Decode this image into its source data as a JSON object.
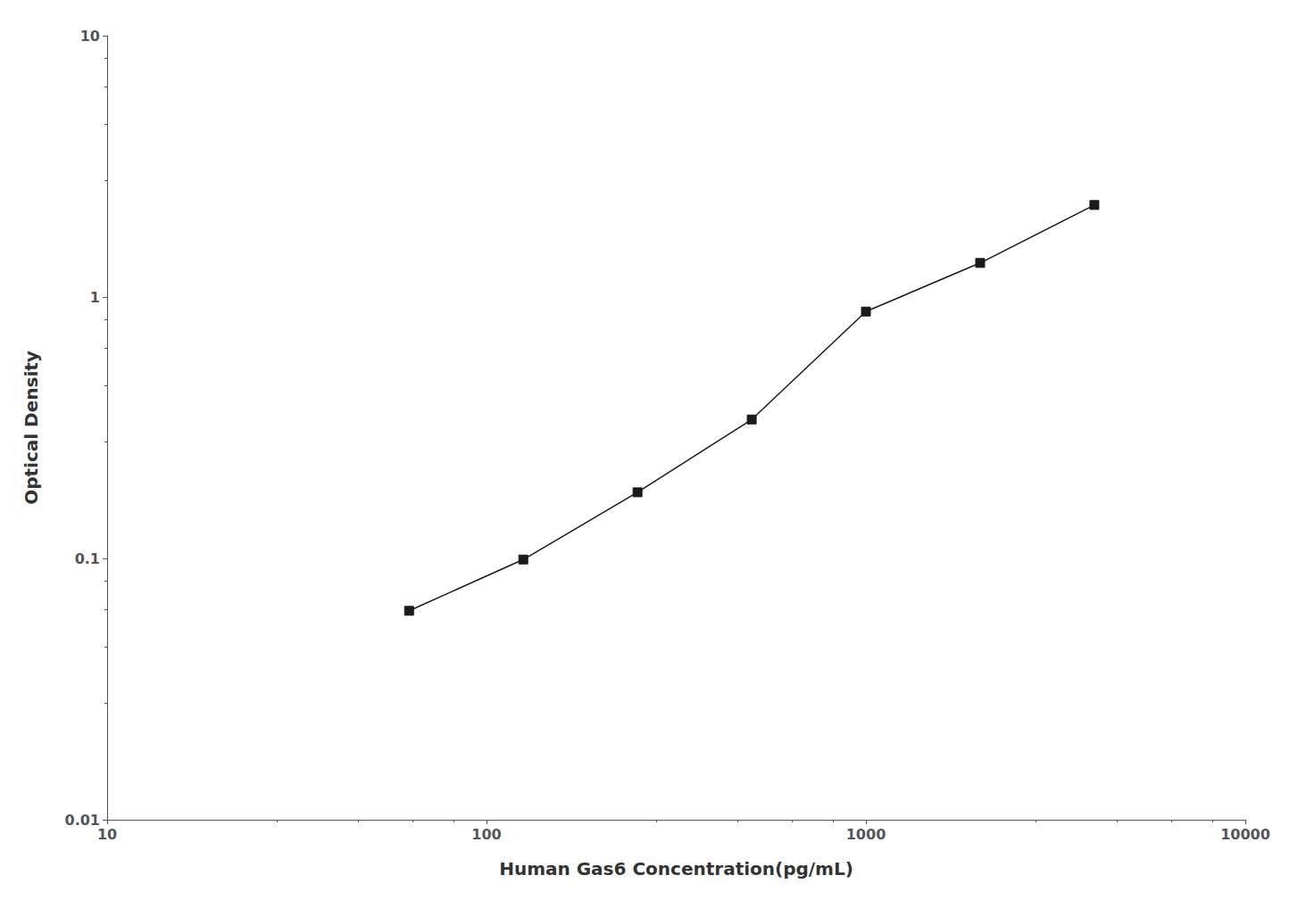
{
  "chart_data": {
    "type": "line",
    "x": [
      62.5,
      125,
      250,
      500,
      1000,
      2000,
      4000
    ],
    "values": [
      0.063,
      0.099,
      0.179,
      0.34,
      0.88,
      1.35,
      2.25
    ],
    "xlabel": "Human Gas6 Concentration(pg/mL)",
    "ylabel": "Optical Density",
    "xlim": [
      10,
      10000
    ],
    "ylim": [
      0.01,
      10
    ],
    "xticks": [
      10,
      100,
      1000,
      10000
    ],
    "yticks": [
      0.01,
      0.1,
      1,
      10
    ],
    "log": true,
    "grid": false,
    "color": "#1a1a1a",
    "marker": "square"
  }
}
